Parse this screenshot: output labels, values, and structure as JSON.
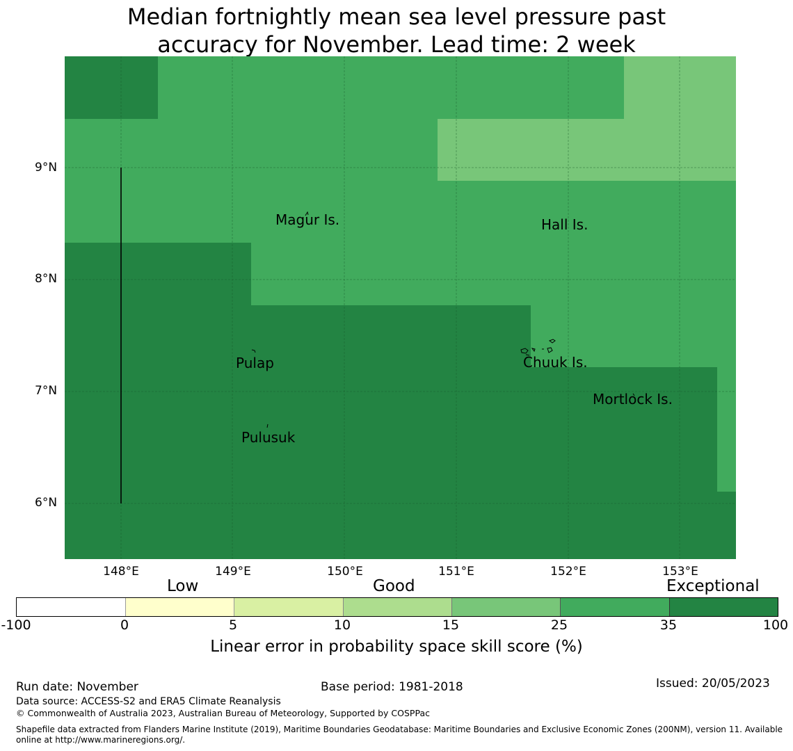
{
  "title": {
    "line1": "Median fortnightly mean sea level pressure past",
    "line2": "accuracy for November. Lead time: 2 week"
  },
  "map": {
    "lon_range": [
      147.5,
      153.5
    ],
    "lat_range": [
      5.5,
      10.0
    ],
    "lat_ticks": [
      "9°N",
      "8°N",
      "7°N",
      "6°N"
    ],
    "lon_ticks": [
      "148°E",
      "149°E",
      "150°E",
      "151°E",
      "152°E",
      "153°E"
    ],
    "islands": [
      "Magur Is.",
      "Hall Is.",
      "Pulap",
      "Chuuk Is.",
      "Mortlock Is.",
      "Pulusuk"
    ],
    "colors": {
      "exceptional": "#238443",
      "good_high": "#41ab5d",
      "good_mid": "#78c679"
    }
  },
  "colorbar": {
    "categories": {
      "low": "Low",
      "good": "Good",
      "exceptional": "Exceptional"
    },
    "ticks": [
      "-100",
      "0",
      "5",
      "10",
      "15",
      "25",
      "35",
      "100"
    ],
    "colors": [
      "#ffffff",
      "#ffffcc",
      "#d9f0a3",
      "#addd8e",
      "#78c679",
      "#41ab5d",
      "#238443"
    ],
    "label": "Linear error in probability space skill score (%)"
  },
  "footer": {
    "run_date": "Run date: November",
    "base_period": "Base period: 1981-2018",
    "issued": "Issued: 20/05/2023",
    "data_source": "Data source: ACCESS-S2 and ERA5 Climate Reanalysis",
    "copyright": "© Commonwealth of Australia 2023, Australian Bureau of Meteorology, Supported by COSPPac",
    "shapefile_line1": "Shapefile data extracted from Flanders Marine Institute (2019), Maritime Boundaries Geodatabase: Maritime Boundaries and Exclusive Economic Zones (200NM), version 11. Available",
    "shapefile_line2": "online at http://www.marineregions.org/."
  }
}
